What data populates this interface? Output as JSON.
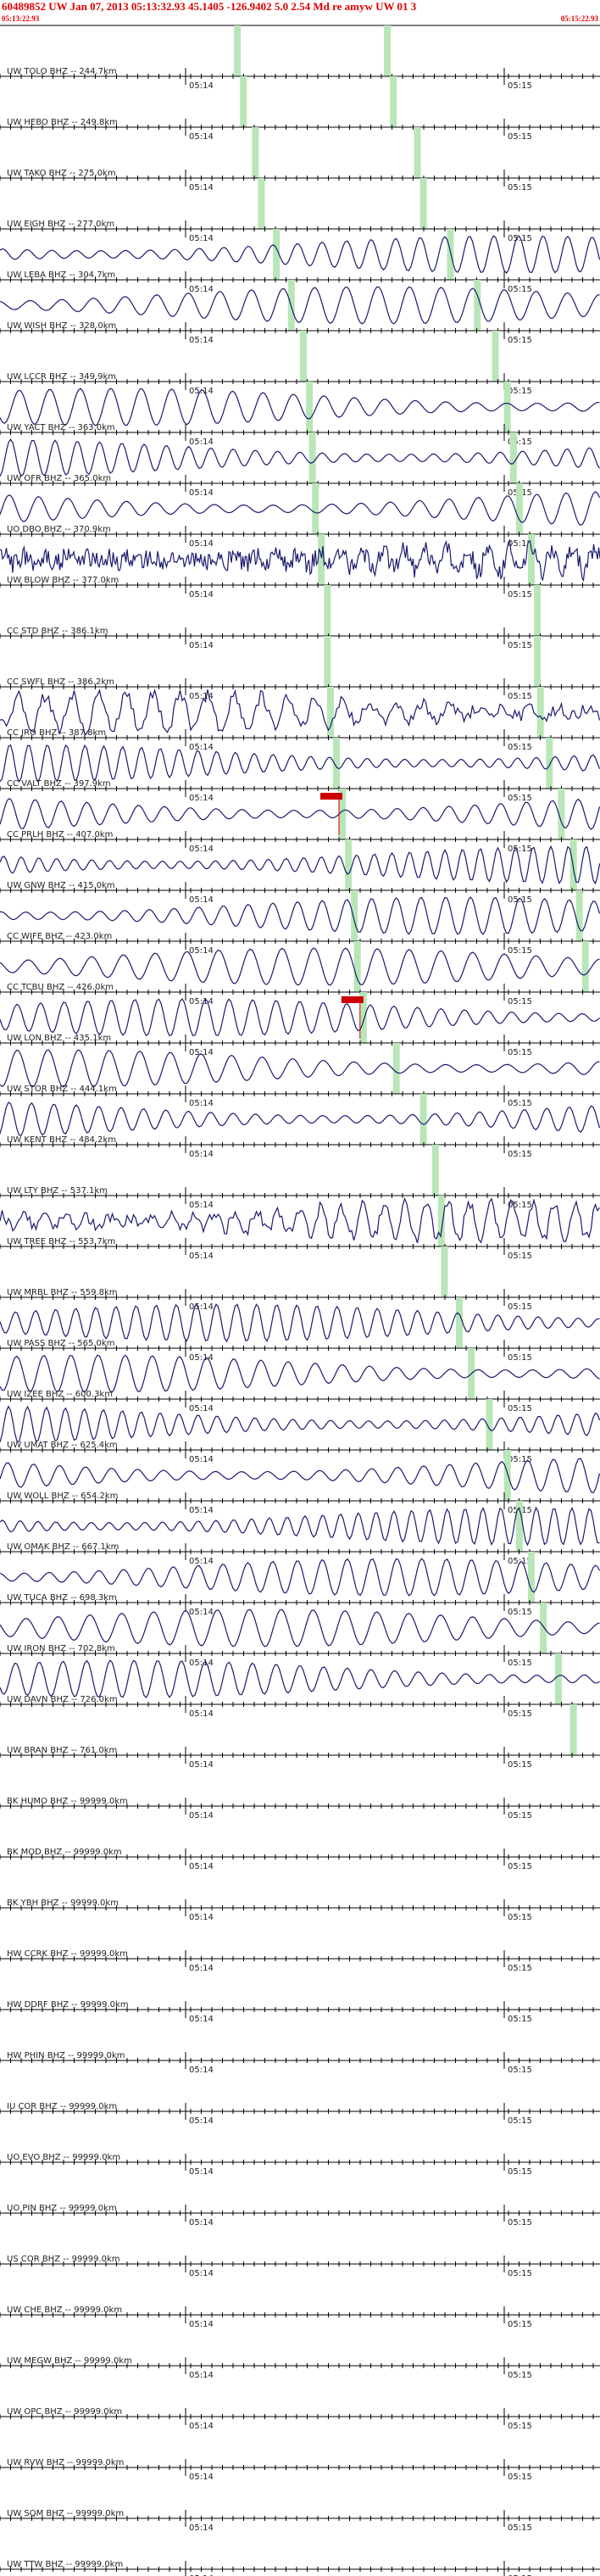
{
  "header": {
    "title": "60489852 UW Jan 07, 2013 05:13:32.93   45.1405 -126.9402  5.0 2.54 Md re amyw UW 01   3",
    "start_time": "05:13:22.93",
    "end_time": "05:15:22.93"
  },
  "time_marks": {
    "minute_a": "05:14",
    "minute_b": "05:15"
  },
  "colors": {
    "header": "#e00000",
    "trace": "#1a1a6e",
    "pick_window": "#b8e6b8",
    "pick_marker": "#cc0000",
    "axis": "#000000"
  },
  "stations": [
    {
      "label": "UW TOLO BHZ -- 244.7km",
      "signal": "flat",
      "p": 0.39,
      "s": 0.64
    },
    {
      "label": "UW HEBO BHZ -- 249.8km",
      "signal": "flat",
      "p": 0.4,
      "s": 0.65
    },
    {
      "label": "UW TAKO BHZ -- 275.0km",
      "signal": "flat",
      "p": 0.42,
      "s": 0.69
    },
    {
      "label": "UW EIGH BHZ -- 277.0km",
      "signal": "flat",
      "p": 0.43,
      "s": 0.7
    },
    {
      "label": "UW LEBA BHZ -- 304.7km",
      "signal": "wave",
      "p": 0.455,
      "s": 0.745
    },
    {
      "label": "UW WISH BHZ -- 328.0km",
      "signal": "wave",
      "p": 0.48,
      "s": 0.79
    },
    {
      "label": "UW LCCR BHZ -- 349.9km",
      "signal": "flat",
      "p": 0.5,
      "s": 0.82
    },
    {
      "label": "UW YACT BHZ -- 363.0km",
      "signal": "wave",
      "p": 0.51,
      "s": 0.84
    },
    {
      "label": "UW OFR BHZ -- 365.0km",
      "signal": "wave",
      "p": 0.515,
      "s": 0.85
    },
    {
      "label": "UO DBO BHZ -- 370.9km",
      "signal": "wave",
      "p": 0.52,
      "s": 0.86
    },
    {
      "label": "UW BLOW BHZ -- 377.0km",
      "signal": "noise",
      "p": 0.53,
      "s": 0.88
    },
    {
      "label": "CC STD BHZ -- 386.1km",
      "signal": "flat",
      "p": 0.54,
      "s": 0.89
    },
    {
      "label": "CC SWFL BHZ -- 386.2km",
      "signal": "flat",
      "p": 0.54,
      "s": 0.89
    },
    {
      "label": "CC JRO BHZ -- 387.8km",
      "signal": "mixed",
      "p": 0.545,
      "s": 0.895
    },
    {
      "label": "CC VALT BHZ -- 397.9km",
      "signal": "wave",
      "p": 0.555,
      "s": 0.91
    },
    {
      "label": "CC PRLH BHZ -- 407.0km",
      "signal": "wave",
      "p": 0.565,
      "s": 0.93,
      "pick": "P"
    },
    {
      "label": "UW GNW BHZ -- 415.0km",
      "signal": "wave",
      "p": 0.575,
      "s": 0.95
    },
    {
      "label": "CC WIFE BHZ -- 423.0km",
      "signal": "wave",
      "p": 0.585,
      "s": 0.96
    },
    {
      "label": "CC TCBU BHZ -- 426.0km",
      "signal": "wave",
      "p": 0.59,
      "s": 0.97
    },
    {
      "label": "UW LON BHZ -- 435.1km",
      "signal": "wave",
      "p": 0.6,
      "s": 0.985,
      "pick": "P"
    },
    {
      "label": "UW STOR BHZ -- 444.1km",
      "signal": "wave",
      "p": 0.655,
      "s": 0.99
    },
    {
      "label": "UW KENT BHZ -- 484.2km",
      "signal": "wave",
      "p": 0.7,
      "s": 0.99
    },
    {
      "label": "UW LTY BHZ -- 537.1km",
      "signal": "flat",
      "p": 0.72,
      "s": 0.99
    },
    {
      "label": "UW TREE BHZ -- 553.7km",
      "signal": "mixed",
      "p": 0.73,
      "s": 0.99
    },
    {
      "label": "UW MRBL BHZ -- 559.8km",
      "signal": "flat",
      "p": 0.735,
      "s": 0.99
    },
    {
      "label": "UW PASS BHZ -- 565.0km",
      "signal": "wave",
      "p": 0.76,
      "s": 0.99
    },
    {
      "label": "UW IZEE BHZ -- 600.3km",
      "signal": "wave",
      "p": 0.78,
      "s": 0.99
    },
    {
      "label": "UW UMAT BHZ -- 625.4km",
      "signal": "wave",
      "p": 0.81,
      "s": 0.99
    },
    {
      "label": "UW WOLL BHZ -- 654.2km",
      "signal": "wave",
      "p": 0.84,
      "s": 0.99
    },
    {
      "label": "UW OMAK BHZ -- 667.1km",
      "signal": "wave",
      "p": 0.86,
      "s": 0.99
    },
    {
      "label": "UW TUCA BHZ -- 698.3km",
      "signal": "wave",
      "p": 0.88,
      "s": 0.99
    },
    {
      "label": "UW IRON BHZ -- 702.8km",
      "signal": "wave",
      "p": 0.9,
      "s": 0.99
    },
    {
      "label": "UW DAVN BHZ -- 726.0km",
      "signal": "wave",
      "p": 0.925,
      "s": 0.99
    },
    {
      "label": "UW BRAN BHZ -- 761.0km",
      "signal": "flat",
      "p": 0.95,
      "s": 0.99
    },
    {
      "label": "BK HUMO BHZ -- 99999.0km",
      "signal": "flat"
    },
    {
      "label": "BK MOD BHZ -- 99999.0km",
      "signal": "flat"
    },
    {
      "label": "BK YBH BHZ -- 99999.0km",
      "signal": "flat"
    },
    {
      "label": "HW CCRK BHZ -- 99999.0km",
      "signal": "flat"
    },
    {
      "label": "HW DDRF BHZ -- 99999.0km",
      "signal": "flat"
    },
    {
      "label": "HW PHIN BHZ -- 99999.0km",
      "signal": "flat"
    },
    {
      "label": "IU COR BHZ -- 99999.0km",
      "signal": "flat"
    },
    {
      "label": "UO EVO BHZ -- 99999.0km",
      "signal": "flat"
    },
    {
      "label": "UO PIN BHZ -- 99999.0km",
      "signal": "flat"
    },
    {
      "label": "US COR BHZ -- 99999.0km",
      "signal": "flat"
    },
    {
      "label": "UW CHE BHZ -- 99999.0km",
      "signal": "flat"
    },
    {
      "label": "UW MEGW BHZ -- 99999.0km",
      "signal": "flat"
    },
    {
      "label": "UW OPC BHZ -- 99999.0km",
      "signal": "flat"
    },
    {
      "label": "UW RVW BHZ -- 99999.0km",
      "signal": "flat"
    },
    {
      "label": "UW SQM BHZ -- 99999.0km",
      "signal": "flat"
    },
    {
      "label": "UW TTW BHZ -- 99999.0km",
      "signal": "flat"
    }
  ]
}
